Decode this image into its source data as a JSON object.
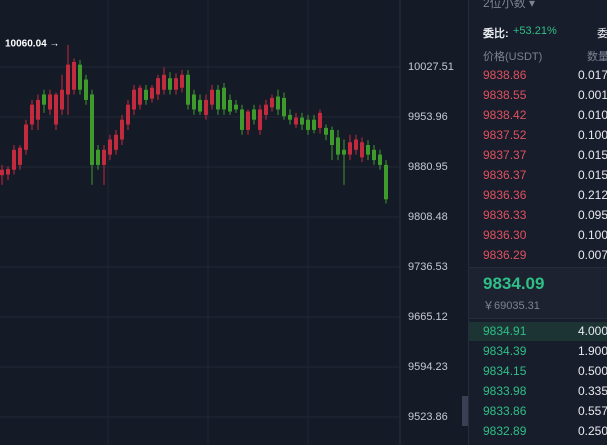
{
  "chart_data": {
    "type": "candlestick",
    "log_scale": true,
    "grid": true,
    "up_color": "#c22a3e",
    "down_color": "#3f9a2c",
    "ylim": [
      9484.7,
      10126.9
    ],
    "yticks": [
      9523.86,
      9594.23,
      9665.12,
      9736.53,
      9808.48,
      9880.95,
      9953.96,
      10027.51
    ],
    "annotations": [
      {
        "text": "10060.04 →"
      }
    ],
    "open": [
      9869,
      9870,
      9877,
      9884,
      9906,
      9943,
      9950,
      9987,
      9965,
      9943,
      9965,
      9987,
      9994,
      10031,
      10009,
      9987,
      9906,
      9884,
      9899,
      9906,
      9921,
      9943,
      9965,
      9972,
      9994,
      9981,
      9987,
      9994,
      10011,
      9994,
      9997,
      10016,
      9987,
      9979,
      9957,
      9972,
      9994,
      9997,
      9979,
      9972,
      9965,
      9935,
      9965,
      9935,
      9957,
      9968,
      9984,
      9982,
      9957,
      9943,
      9953,
      9950,
      9950,
      9938,
      9938,
      9935,
      9924,
      9906,
      9899,
      9906,
      9895,
      9913,
      9906,
      9899,
      9884
    ],
    "high": [
      9884,
      9882,
      9913,
      9913,
      9950,
      9979,
      9987,
      9994,
      9994,
      9990,
      10016,
      10060.04,
      10040,
      10038,
      10016,
      9994,
      9913,
      9913,
      9928,
      9935,
      9957,
      9979,
      10001,
      10001,
      10001,
      10001,
      10016,
      10027,
      10020,
      10018,
      10023,
      10023,
      9994,
      9987,
      9987,
      10001,
      10001,
      10004,
      9987,
      9979,
      9972,
      9965,
      9972,
      9972,
      9979,
      9987,
      9994,
      9990,
      9965,
      9960,
      9960,
      9957,
      9957,
      9965,
      9943,
      9940,
      9935,
      9921,
      9928,
      9928,
      9924,
      9920,
      9913,
      9906,
      9891
    ],
    "low": [
      9855,
      9862,
      9870,
      9877,
      9899,
      9935,
      9935,
      9960,
      9957,
      9935,
      9957,
      9957,
      9987,
      9987,
      9972,
      9855,
      9877,
      9855,
      9891,
      9899,
      9913,
      9935,
      9957,
      9965,
      9972,
      9975,
      9979,
      9987,
      9987,
      9987,
      9990,
      9965,
      9957,
      9957,
      9950,
      9965,
      9957,
      9957,
      9957,
      9960,
      9928,
      9928,
      9943,
      9928,
      9950,
      9962,
      9957,
      9950,
      9943,
      9938,
      9935,
      9928,
      9930,
      9930,
      9920,
      9891,
      9891,
      9855,
      9891,
      9899,
      9888,
      9891,
      9884,
      9877,
      9828
    ],
    "close": [
      9877,
      9878,
      9906,
      9909,
      9943,
      9972,
      9979,
      9972,
      9987,
      9987,
      9994,
      10031,
      10035,
      9994,
      9979,
      9884,
      9884,
      9906,
      9921,
      9928,
      9950,
      9972,
      9994,
      9997,
      9979,
      9997,
      10011,
      10016,
      9994,
      10011,
      10016,
      9972,
      9965,
      9962,
      9979,
      9994,
      9965,
      9965,
      9962,
      9965,
      9935,
      9962,
      9950,
      9965,
      9972,
      9982,
      9965,
      9955,
      9950,
      9953,
      9943,
      9935,
      9935,
      9960,
      9928,
      9913,
      9899,
      9899,
      9917,
      9921,
      9917,
      9899,
      9891,
      9884,
      9834.09
    ]
  },
  "order_book": {
    "precision": "2位小数 ▾",
    "ratio_label": "委比:",
    "ratio": "+53.21%",
    "ratio_label_2": "委",
    "price_header": "价格(USDT)",
    "qty_header": "数量",
    "asks": [
      [
        "9838.86",
        "0.017"
      ],
      [
        "9838.55",
        "0.001"
      ],
      [
        "9838.42",
        "0.010"
      ],
      [
        "9837.52",
        "0.1000"
      ],
      [
        "9837.37",
        "0.015"
      ],
      [
        "9836.37",
        "0.015"
      ],
      [
        "9836.36",
        "0.212"
      ],
      [
        "9836.33",
        "0.095"
      ],
      [
        "9836.30",
        "0.100"
      ],
      [
        "9836.29",
        "0.007"
      ]
    ],
    "last_price": "9834.09",
    "last_price_cny": "￥69035.31",
    "bids": [
      [
        "9834.91",
        "4.000"
      ],
      [
        "9834.39",
        "1.900"
      ],
      [
        "9834.15",
        "0.500"
      ],
      [
        "9833.98",
        "0.335"
      ],
      [
        "9833.86",
        "0.557"
      ],
      [
        "9832.89",
        "0.250"
      ]
    ]
  }
}
